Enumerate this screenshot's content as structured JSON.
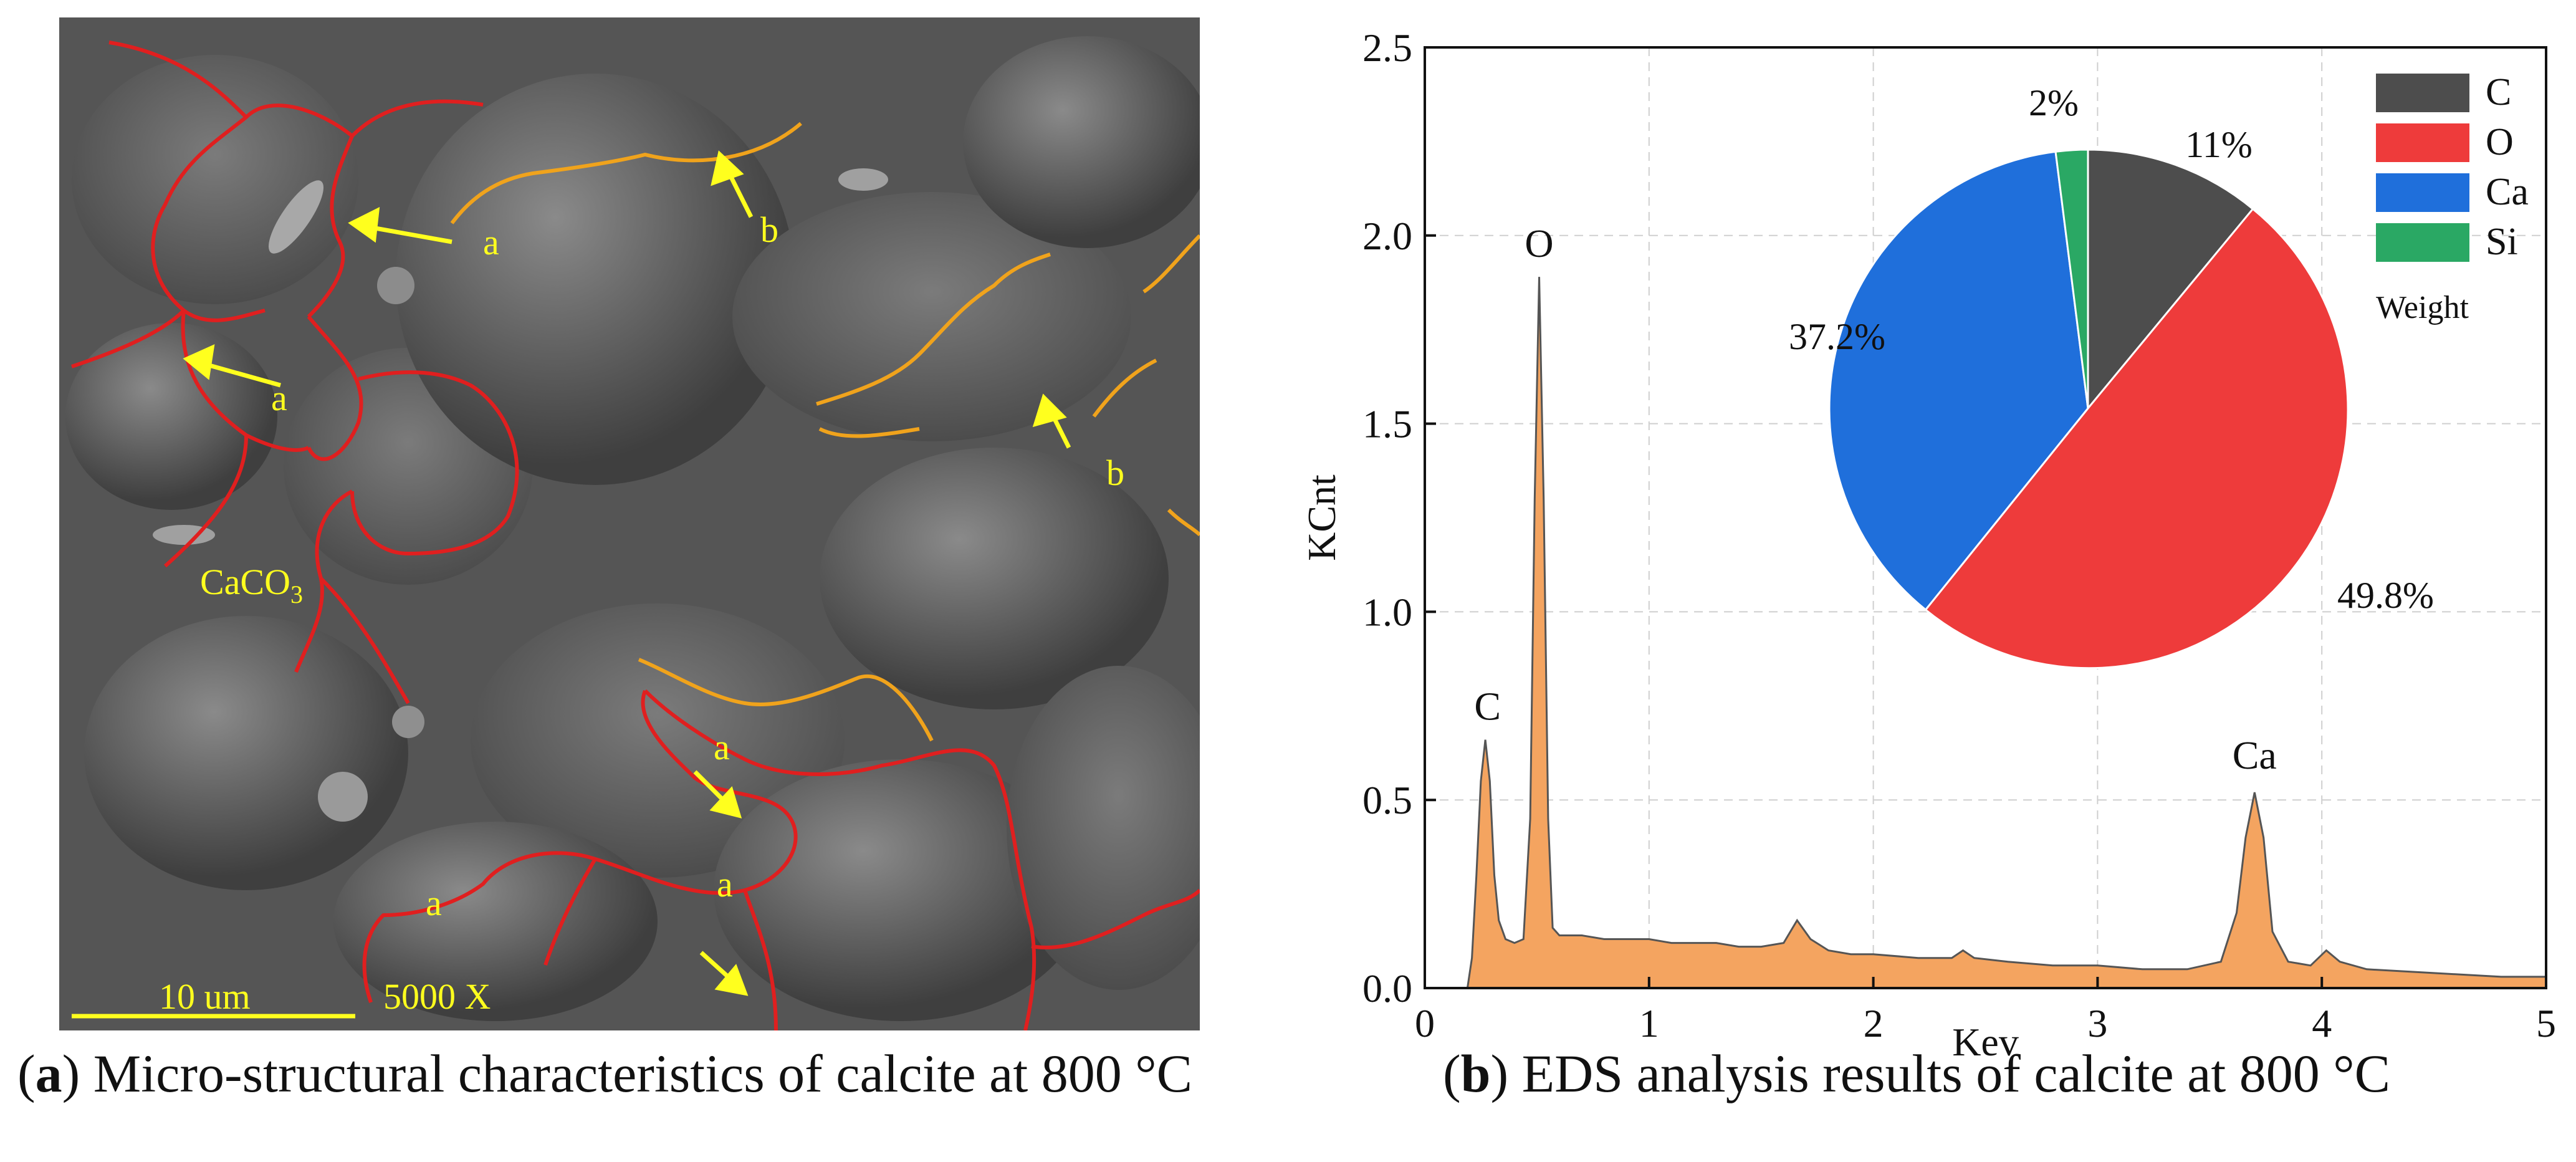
{
  "panel_a": {
    "caption_letter": "a",
    "caption_text": "Micro-structural characteristics of calcite at 800 °C",
    "labels": {
      "a": "a",
      "b": "b",
      "mineral": "CaCO",
      "mineral_sub": "3",
      "scale_bar": "10 um",
      "magnification": "5000 X"
    },
    "colors": {
      "boundary_a": "#e01f1f",
      "boundary_b": "#f0a31c",
      "annotation": "#ffff1e"
    }
  },
  "panel_b": {
    "caption_letter": "b",
    "caption_text": "EDS analysis results of calcite at 800 °C"
  },
  "chart_data": [
    {
      "type": "area",
      "xlabel": "Kev",
      "ylabel": "KCnt",
      "xlim": [
        0,
        5
      ],
      "ylim": [
        0,
        2.5
      ],
      "x_ticks": [
        "0",
        "1",
        "2",
        "3",
        "4",
        "5"
      ],
      "y_ticks": [
        "0.0",
        "0.5",
        "1.0",
        "1.5",
        "2.0",
        "2.5"
      ],
      "grid": true,
      "fill_color": "#f4a460",
      "line_color": "#555555",
      "x": [
        0,
        0.19,
        0.21,
        0.23,
        0.25,
        0.27,
        0.29,
        0.31,
        0.33,
        0.36,
        0.4,
        0.44,
        0.47,
        0.49,
        0.51,
        0.53,
        0.55,
        0.57,
        0.6,
        0.7,
        0.8,
        0.9,
        1.0,
        1.1,
        1.2,
        1.3,
        1.4,
        1.5,
        1.6,
        1.66,
        1.72,
        1.8,
        1.9,
        2.0,
        2.2,
        2.35,
        2.4,
        2.45,
        2.6,
        2.8,
        3.0,
        3.2,
        3.4,
        3.55,
        3.62,
        3.66,
        3.7,
        3.74,
        3.78,
        3.85,
        3.95,
        4.02,
        4.08,
        4.2,
        4.5,
        4.8,
        5.0
      ],
      "y": [
        0,
        0,
        0.08,
        0.3,
        0.55,
        0.66,
        0.55,
        0.3,
        0.18,
        0.13,
        0.12,
        0.13,
        0.45,
        1.3,
        1.89,
        1.3,
        0.45,
        0.16,
        0.14,
        0.14,
        0.13,
        0.13,
        0.13,
        0.12,
        0.12,
        0.12,
        0.11,
        0.11,
        0.12,
        0.18,
        0.13,
        0.1,
        0.09,
        0.09,
        0.08,
        0.08,
        0.1,
        0.08,
        0.07,
        0.06,
        0.06,
        0.05,
        0.05,
        0.07,
        0.2,
        0.4,
        0.52,
        0.4,
        0.15,
        0.07,
        0.06,
        0.1,
        0.07,
        0.05,
        0.04,
        0.03,
        0.03
      ],
      "annotations": [
        {
          "text": "C",
          "x": 0.28,
          "y": 0.7
        },
        {
          "text": "O",
          "x": 0.51,
          "y": 1.93
        },
        {
          "text": "Ca",
          "x": 3.7,
          "y": 0.57
        }
      ]
    },
    {
      "type": "pie",
      "legend_title": "Weight",
      "legend_position": "top-right",
      "slices": [
        {
          "name": "C",
          "value": 11,
          "label": "11%",
          "color": "#4d4d4d"
        },
        {
          "name": "O",
          "value": 49.8,
          "label": "49.8%",
          "color": "#ee3b3b"
        },
        {
          "name": "Ca",
          "value": 37.2,
          "label": "37.2%",
          "color": "#1f6fdb"
        },
        {
          "name": "Si",
          "value": 2,
          "label": "2%",
          "color": "#2aa864"
        }
      ]
    }
  ]
}
